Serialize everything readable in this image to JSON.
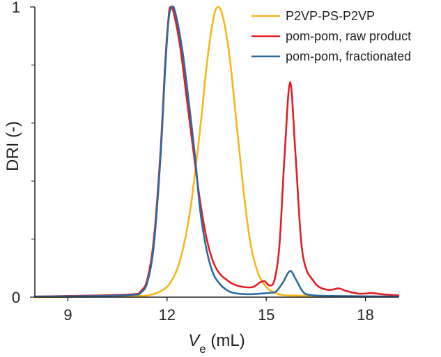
{
  "chart_data": {
    "type": "line",
    "xlabel_main": "V",
    "xlabel_sub": "e",
    "xlabel_unit": " (mL)",
    "ylabel": "DRI (-)",
    "xlim": [
      8,
      19
    ],
    "ylim": [
      0,
      1
    ],
    "x_ticks": [
      9,
      12,
      15,
      18
    ],
    "x_tick_labels": [
      "9",
      "12",
      "15",
      "18"
    ],
    "y_ticks": [
      0,
      1
    ],
    "y_tick_labels": [
      "0",
      "1"
    ],
    "y_minor_ticks": [
      0.2,
      0.4,
      0.6,
      0.8
    ],
    "grid": false,
    "legend_position": "top-right",
    "series": [
      {
        "name": "P2VP-PS-P2VP",
        "color": "#f7b718",
        "points": [
          [
            8,
            0
          ],
          [
            10,
            0.002
          ],
          [
            11.2,
            0.004
          ],
          [
            11.5,
            0.008
          ],
          [
            11.8,
            0.02
          ],
          [
            12.1,
            0.05
          ],
          [
            12.4,
            0.13
          ],
          [
            12.7,
            0.3
          ],
          [
            13.0,
            0.58
          ],
          [
            13.2,
            0.8
          ],
          [
            13.4,
            0.96
          ],
          [
            13.55,
            1.0
          ],
          [
            13.7,
            0.96
          ],
          [
            13.9,
            0.82
          ],
          [
            14.1,
            0.6
          ],
          [
            14.3,
            0.38
          ],
          [
            14.5,
            0.2
          ],
          [
            14.7,
            0.1
          ],
          [
            14.9,
            0.05
          ],
          [
            15.1,
            0.025
          ],
          [
            15.4,
            0.01
          ],
          [
            16,
            0.005
          ],
          [
            19,
            0.002
          ]
        ]
      },
      {
        "name": "pom-pom, raw product",
        "color": "#e31e24",
        "points": [
          [
            8,
            0.002
          ],
          [
            9,
            0.004
          ],
          [
            10,
            0.006
          ],
          [
            11,
            0.01
          ],
          [
            11.2,
            0.02
          ],
          [
            11.4,
            0.06
          ],
          [
            11.6,
            0.2
          ],
          [
            11.8,
            0.5
          ],
          [
            11.95,
            0.82
          ],
          [
            12.05,
            0.97
          ],
          [
            12.1,
            1.0
          ],
          [
            12.2,
            0.98
          ],
          [
            12.4,
            0.86
          ],
          [
            12.6,
            0.68
          ],
          [
            12.8,
            0.5
          ],
          [
            13.0,
            0.33
          ],
          [
            13.2,
            0.2
          ],
          [
            13.4,
            0.12
          ],
          [
            13.6,
            0.08
          ],
          [
            13.8,
            0.06
          ],
          [
            14.0,
            0.045
          ],
          [
            14.3,
            0.035
          ],
          [
            14.6,
            0.035
          ],
          [
            14.8,
            0.05
          ],
          [
            14.95,
            0.055
          ],
          [
            15.1,
            0.04
          ],
          [
            15.25,
            0.06
          ],
          [
            15.4,
            0.18
          ],
          [
            15.55,
            0.48
          ],
          [
            15.72,
            0.74
          ],
          [
            15.88,
            0.5
          ],
          [
            16.05,
            0.2
          ],
          [
            16.2,
            0.1
          ],
          [
            16.4,
            0.06
          ],
          [
            16.6,
            0.035
          ],
          [
            16.9,
            0.025
          ],
          [
            17.2,
            0.03
          ],
          [
            17.4,
            0.022
          ],
          [
            17.8,
            0.012
          ],
          [
            18.2,
            0.014
          ],
          [
            18.5,
            0.01
          ],
          [
            19,
            0.006
          ]
        ]
      },
      {
        "name": "pom-pom, fractionated",
        "color": "#2c6aa0",
        "points": [
          [
            8,
            0.002
          ],
          [
            10,
            0.004
          ],
          [
            11,
            0.008
          ],
          [
            11.2,
            0.015
          ],
          [
            11.4,
            0.05
          ],
          [
            11.6,
            0.18
          ],
          [
            11.8,
            0.48
          ],
          [
            11.95,
            0.8
          ],
          [
            12.05,
            0.96
          ],
          [
            12.15,
            1.0
          ],
          [
            12.25,
            0.98
          ],
          [
            12.45,
            0.86
          ],
          [
            12.65,
            0.68
          ],
          [
            12.85,
            0.48
          ],
          [
            13.0,
            0.3
          ],
          [
            13.2,
            0.16
          ],
          [
            13.4,
            0.08
          ],
          [
            13.6,
            0.045
          ],
          [
            13.8,
            0.025
          ],
          [
            14.0,
            0.015
          ],
          [
            14.4,
            0.01
          ],
          [
            14.8,
            0.012
          ],
          [
            15.1,
            0.015
          ],
          [
            15.3,
            0.02
          ],
          [
            15.5,
            0.05
          ],
          [
            15.72,
            0.09
          ],
          [
            15.9,
            0.06
          ],
          [
            16.1,
            0.02
          ],
          [
            16.3,
            0.008
          ],
          [
            17,
            0.004
          ],
          [
            19,
            0.002
          ]
        ]
      }
    ]
  }
}
